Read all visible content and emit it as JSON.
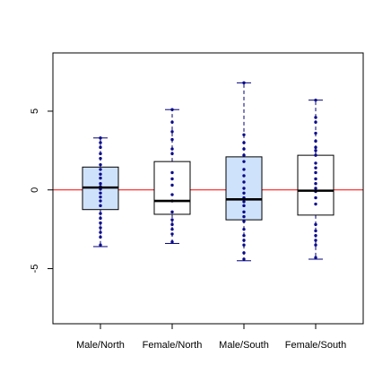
{
  "colors": {
    "box_fill_highlight": "#cfe2fb",
    "box_fill_plain": "#ffffff",
    "box_border": "#000000",
    "median": "#000000",
    "whisker": "#00007a",
    "points": "#0a0a8c",
    "reference_line": "#ff0000",
    "frame": "#000000"
  },
  "chart_data": {
    "type": "box",
    "title": "",
    "xlabel": "",
    "ylabel": "",
    "ylim": [
      -8.5,
      8.7
    ],
    "yticks": [
      -5,
      0,
      5
    ],
    "reference_line_y": 0,
    "grid": false,
    "categories": [
      "Male/North",
      "Female/North",
      "Male/South",
      "Female/South"
    ],
    "boxes": [
      {
        "label": "Male/North",
        "highlight": true,
        "min": -3.6,
        "q1": -1.25,
        "median": 0.15,
        "q3": 1.45,
        "max": 3.3,
        "points": [
          3.3,
          3.0,
          2.7,
          2.3,
          2.0,
          1.6,
          1.3,
          1.0,
          0.75,
          0.4,
          0.2,
          0.05,
          -0.2,
          -0.45,
          -0.7,
          -1.0,
          -1.5,
          -1.8,
          -2.1,
          -2.4,
          -2.7,
          -3.0,
          -3.5
        ]
      },
      {
        "label": "Female/North",
        "highlight": false,
        "min": -3.4,
        "q1": -1.55,
        "median": -0.7,
        "q3": 1.8,
        "max": 5.1,
        "points": [
          5.1,
          4.3,
          3.7,
          3.2,
          2.6,
          2.3,
          1.1,
          0.7,
          0.3,
          -0.3,
          -0.7,
          -1.4,
          -1.9,
          -2.2,
          -2.5,
          -2.8,
          -3.3
        ]
      },
      {
        "label": "Male/South",
        "highlight": true,
        "min": -4.5,
        "q1": -1.9,
        "median": -0.6,
        "q3": 2.1,
        "max": 6.8,
        "points": [
          6.8,
          3.5,
          3.0,
          2.6,
          2.2,
          1.8,
          1.3,
          0.9,
          0.5,
          0.1,
          -0.2,
          -0.5,
          -0.75,
          -1.0,
          -1.4,
          -1.7,
          -2.0,
          -2.5,
          -2.9,
          -3.2,
          -3.5,
          -4.0,
          -4.4
        ]
      },
      {
        "label": "Female/South",
        "highlight": false,
        "min": -4.4,
        "q1": -1.6,
        "median": -0.05,
        "q3": 2.2,
        "max": 5.7,
        "points": [
          5.7,
          4.6,
          4.3,
          3.6,
          3.1,
          2.7,
          2.5,
          2.2,
          1.7,
          1.4,
          1.1,
          0.7,
          0.4,
          0.1,
          -0.1,
          -0.5,
          -0.9,
          -2.2,
          -2.6,
          -2.9,
          -3.2,
          -3.5,
          -4.3
        ]
      }
    ]
  }
}
